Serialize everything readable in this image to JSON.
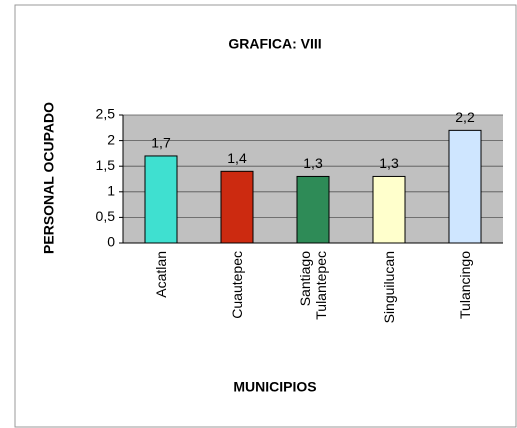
{
  "chart_data": {
    "type": "bar",
    "title": "GRAFICA: VIII",
    "y_label": "PERSONAL OCUPADO",
    "x_label": "MUNICIPIOS",
    "categories": [
      "Acatlan",
      "Cuautepec",
      "Santiago Tulantepec",
      "Singuilucan",
      "Tulancingo"
    ],
    "values": [
      1.7,
      1.4,
      1.3,
      1.3,
      2.2
    ],
    "value_labels": [
      "1,7",
      "1,4",
      "1,3",
      "1,3",
      "2,2"
    ],
    "colors": [
      "#3fe0d0",
      "#cc2a10",
      "#2e8b57",
      "#ffffcc",
      "#cfe6ff"
    ],
    "ylim": [
      0,
      2.5
    ],
    "yticks": [
      0,
      {
        "value": 0.5,
        "label": "0,5"
      },
      1,
      {
        "value": 1.5,
        "label": "1,5"
      },
      2,
      {
        "value": 2.5,
        "label": "2,5"
      }
    ],
    "grid": true
  }
}
